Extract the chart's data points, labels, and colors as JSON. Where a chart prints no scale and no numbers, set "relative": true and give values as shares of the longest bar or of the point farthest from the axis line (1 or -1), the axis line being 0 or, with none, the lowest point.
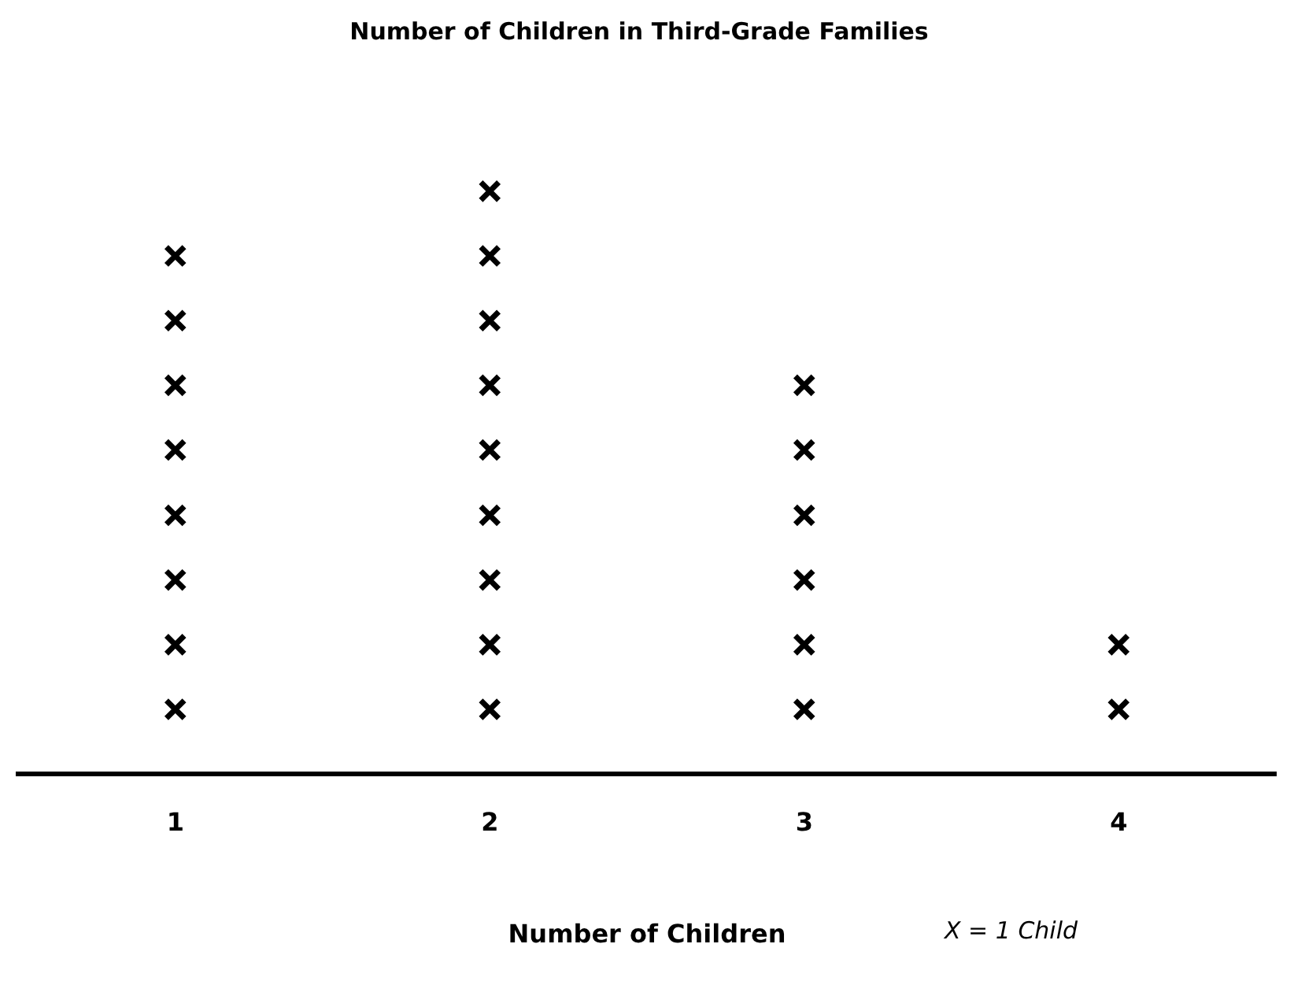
{
  "chart_data": {
    "type": "scatter",
    "title": "Number of Children in Third-Grade Families",
    "xlabel": "Number of Children",
    "categories": [
      "1",
      "2",
      "3",
      "4"
    ],
    "series": [
      {
        "color": "#000000",
        "x": [
          "1",
          "1",
          "1",
          "1",
          "1",
          "1",
          "1",
          "1",
          "2",
          "2",
          "2",
          "2",
          "2",
          "2",
          "2",
          "2",
          "2",
          "3",
          "3",
          "3",
          "3",
          "3",
          "3",
          "4",
          "4"
        ],
        "values": [
          0.111,
          0.222,
          0.333,
          0.444,
          0.556,
          0.667,
          0.778,
          0.889,
          0.111,
          0.222,
          0.333,
          0.444,
          0.556,
          0.667,
          0.778,
          0.889,
          1,
          0.111,
          0.222,
          0.333,
          0.444,
          0.556,
          0.667,
          0.111,
          0.222
        ]
      }
    ],
    "relative": true,
    "tick_labels": "x",
    "grid": false,
    "legend": false,
    "marker": "cross",
    "annotations": [
      "X = 1 Child"
    ]
  }
}
